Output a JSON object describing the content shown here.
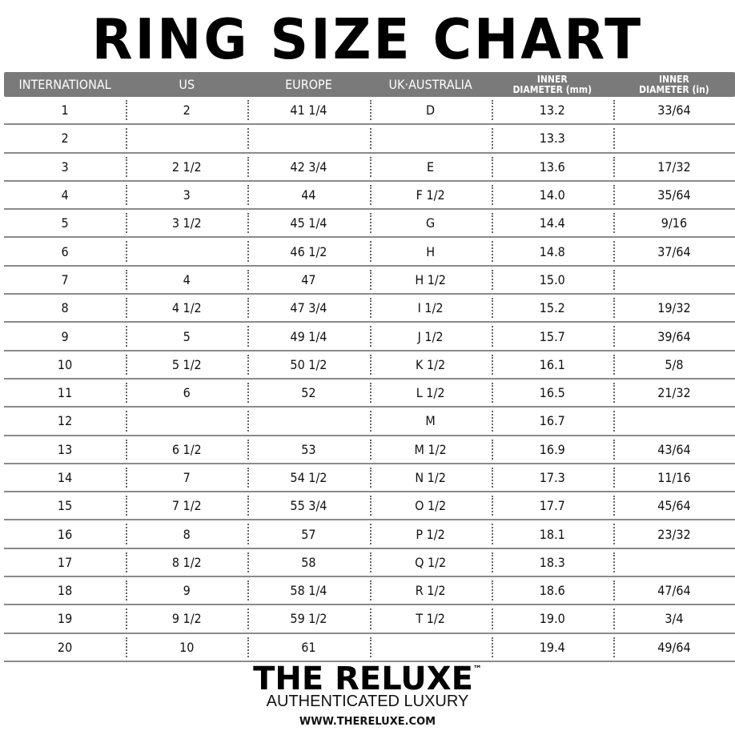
{
  "title": "RING SIZE CHART",
  "headers": [
    "INTERNATIONAL",
    "US",
    "EUROPE",
    "UK·AUSTRALIA",
    [
      "INNER",
      "DIAMETER (mm)"
    ],
    [
      "INNER",
      "DIAMETER (in)"
    ]
  ],
  "rows": [
    [
      "1",
      "2",
      "41 1/4",
      "D",
      "13.2",
      "33/64"
    ],
    [
      "2",
      "",
      "",
      "",
      "13.3",
      ""
    ],
    [
      "3",
      "2 1/2",
      "42 3/4",
      "E",
      "13.6",
      "17/32"
    ],
    [
      "4",
      "3",
      "44",
      "F 1/2",
      "14.0",
      "35/64"
    ],
    [
      "5",
      "3 1/2",
      "45 1/4",
      "G",
      "14.4",
      "9/16"
    ],
    [
      "6",
      "",
      "46 1/2",
      "H",
      "14.8",
      "37/64"
    ],
    [
      "7",
      "4",
      "47",
      "H 1/2",
      "15.0",
      ""
    ],
    [
      "8",
      "4 1/2",
      "47 3/4",
      "I 1/2",
      "15.2",
      "19/32"
    ],
    [
      "9",
      "5",
      "49 1/4",
      "J 1/2",
      "15.7",
      "39/64"
    ],
    [
      "10",
      "5 1/2",
      "50 1/2",
      "K 1/2",
      "16.1",
      "5/8"
    ],
    [
      "11",
      "6",
      "52",
      "L 1/2",
      "16.5",
      "21/32"
    ],
    [
      "12",
      "",
      "",
      "M",
      "16.7",
      ""
    ],
    [
      "13",
      "6 1/2",
      "53",
      "M 1/2",
      "16.9",
      "43/64"
    ],
    [
      "14",
      "7",
      "54 1/2",
      "N 1/2",
      "17.3",
      "11/16"
    ],
    [
      "15",
      "7 1/2",
      "55 3/4",
      "O 1/2",
      "17.7",
      "45/64"
    ],
    [
      "16",
      "8",
      "57",
      "P 1/2",
      "18.1",
      "23/32"
    ],
    [
      "17",
      "8 1/2",
      "58",
      "Q 1/2",
      "18.3",
      ""
    ],
    [
      "18",
      "9",
      "58 1/4",
      "R 1/2",
      "18.6",
      "47/64"
    ],
    [
      "19",
      "9 1/2",
      "59 1/2",
      "T 1/2",
      "19.0",
      "3/4"
    ],
    [
      "20",
      "10",
      "61",
      "",
      "19.4",
      "49/64"
    ]
  ],
  "brand": {
    "name": "THE RELUXE",
    "tm": "™",
    "tagline": "AUTHENTICATED LUXURY",
    "url": "WWW.THERELUXE.COM"
  }
}
